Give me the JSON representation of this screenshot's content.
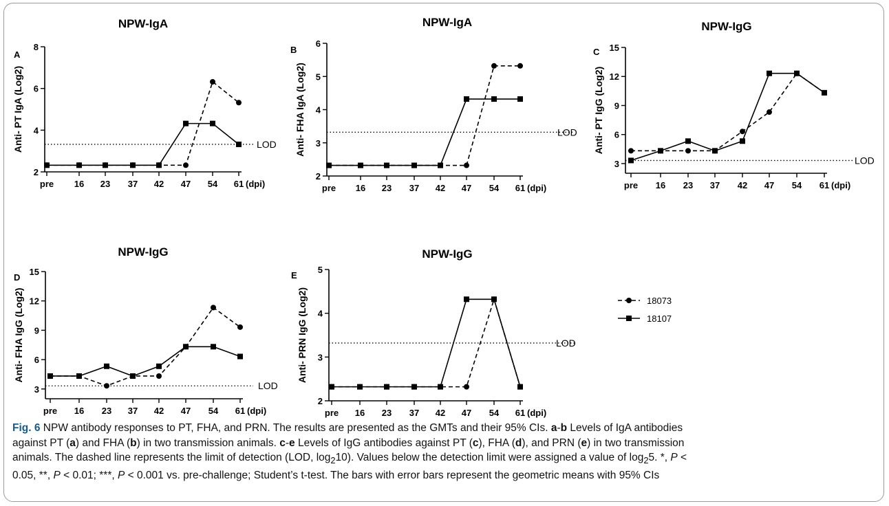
{
  "colors": {
    "text": "#000000",
    "figure_label": "#1a5a8a"
  },
  "chart_data": [
    {
      "panel": "A",
      "type": "line",
      "title": "NPW-IgA",
      "ylabel": "Anti- PT  IgA (Log2)",
      "xunit": "(dpi)",
      "categories": [
        "pre",
        "16",
        "23",
        "37",
        "42",
        "47",
        "54",
        "61"
      ],
      "yticks": [
        2,
        4,
        6,
        8
      ],
      "ylim": [
        2,
        8
      ],
      "lod": 3.32,
      "lod_label": "LOD",
      "series": [
        {
          "name": "18073",
          "style": "dashed",
          "marker": "circle",
          "values": [
            2.32,
            2.32,
            2.32,
            2.32,
            2.32,
            2.32,
            6.32,
            5.32
          ]
        },
        {
          "name": "18107",
          "style": "solid",
          "marker": "square",
          "values": [
            2.32,
            2.32,
            2.32,
            2.32,
            2.32,
            4.32,
            4.32,
            3.32
          ]
        }
      ]
    },
    {
      "panel": "B",
      "type": "line",
      "title": "NPW-IgA",
      "ylabel": "Anti- FHA  IgA (Log2)",
      "xunit": "(dpi)",
      "categories": [
        "pre",
        "16",
        "23",
        "37",
        "42",
        "47",
        "54",
        "61"
      ],
      "yticks": [
        2,
        3,
        4,
        5,
        6
      ],
      "ylim": [
        2,
        6
      ],
      "lod": 3.32,
      "lod_label": "LOD",
      "series": [
        {
          "name": "18073",
          "style": "dashed",
          "marker": "circle",
          "values": [
            2.32,
            2.32,
            2.32,
            2.32,
            2.32,
            2.32,
            5.32,
            5.32
          ]
        },
        {
          "name": "18107",
          "style": "solid",
          "marker": "square",
          "values": [
            2.32,
            2.32,
            2.32,
            2.32,
            2.32,
            4.32,
            4.32,
            4.32
          ]
        }
      ]
    },
    {
      "panel": "C",
      "type": "line",
      "title": "NPW-IgG",
      "ylabel": "Anti- PT  IgG (Log2)",
      "xunit": "(dpi)",
      "categories": [
        "pre",
        "16",
        "23",
        "37",
        "42",
        "47",
        "54",
        "61"
      ],
      "yticks": [
        3,
        6,
        9,
        12,
        15
      ],
      "ylim": [
        2,
        15
      ],
      "lod": 3.32,
      "lod_label": "LOD",
      "series": [
        {
          "name": "18073",
          "style": "dashed",
          "marker": "circle",
          "values": [
            4.32,
            4.32,
            4.32,
            4.32,
            6.32,
            8.32,
            12.32,
            10.32
          ]
        },
        {
          "name": "18107",
          "style": "solid",
          "marker": "square",
          "values": [
            3.32,
            4.32,
            5.32,
            4.32,
            5.32,
            12.32,
            12.32,
            10.32
          ]
        }
      ]
    },
    {
      "panel": "D",
      "type": "line",
      "title": "NPW-IgG",
      "ylabel": "Anti- FHA  IgG (Log2)",
      "xunit": "(dpi)",
      "categories": [
        "pre",
        "16",
        "23",
        "37",
        "42",
        "47",
        "54",
        "61"
      ],
      "yticks": [
        3,
        6,
        9,
        12,
        15
      ],
      "ylim": [
        2,
        15
      ],
      "lod": 3.32,
      "lod_label": "LOD",
      "series": [
        {
          "name": "18073",
          "style": "dashed",
          "marker": "circle",
          "values": [
            4.32,
            4.32,
            3.32,
            4.32,
            4.32,
            7.32,
            11.32,
            9.32
          ]
        },
        {
          "name": "18107",
          "style": "solid",
          "marker": "square",
          "values": [
            4.32,
            4.32,
            5.32,
            4.32,
            5.32,
            7.32,
            7.32,
            6.32
          ]
        }
      ]
    },
    {
      "panel": "E",
      "type": "line",
      "title": "NPW-IgG",
      "ylabel": "Anti- PRN  IgG (Log2)",
      "xunit": "(dpi)",
      "categories": [
        "pre",
        "16",
        "23",
        "37",
        "42",
        "47",
        "54",
        "61"
      ],
      "yticks": [
        2,
        3,
        4,
        5
      ],
      "ylim": [
        2,
        5
      ],
      "lod": 3.32,
      "lod_label": "LOD",
      "series": [
        {
          "name": "18073",
          "style": "dashed",
          "marker": "circle",
          "values": [
            2.32,
            2.32,
            2.32,
            2.32,
            2.32,
            2.32,
            4.32,
            2.32
          ]
        },
        {
          "name": "18107",
          "style": "solid",
          "marker": "square",
          "values": [
            2.32,
            2.32,
            2.32,
            2.32,
            2.32,
            4.32,
            4.32,
            2.32
          ]
        }
      ]
    }
  ],
  "legend": [
    {
      "name": "18073",
      "style": "dashed",
      "marker": "circle"
    },
    {
      "name": "18107",
      "style": "solid",
      "marker": "square"
    }
  ],
  "caption": {
    "fig_label": "Fig. 6",
    "line1": " NPW antibody responses to PT, FHA, and PRN. The results are presented as the GMTs and their 95% CIs. ",
    "l1b": "a",
    "l1c": "-",
    "l1d": "b",
    "l1e": " Levels of IgA antibodies",
    "line2a": "against PT (",
    "line2b": "a",
    "line2c": ") and FHA (",
    "line2d": "b",
    "line2e": ") in two transmission animals. ",
    "line2f": "c",
    "line2g": "-",
    "line2h": "e",
    "line2i": " Levels of IgG antibodies against PT (",
    "line2j": "c",
    "line2k": "), FHA (",
    "line2l": "d",
    "line2m": "), and PRN (",
    "line2n": "e",
    "line2o": ") in two transmission",
    "line3a": "animals. The dashed line represents the limit of detection (LOD, log",
    "line3sub": "2",
    "line3b": "10). Values below the detection limit were assigned a value of log",
    "line3sub2": "2",
    "line3c": "5. *, ",
    "line3p": "P",
    "line3d": " <",
    "line4a": "0.05, **, ",
    "line4p1": "P",
    "line4b": " < 0.01; ***, ",
    "line4p2": "P",
    "line4c": " < 0.001 vs. pre-challenge; Student’s t-test. The bars with error bars represent the geometric means with 95% CIs"
  }
}
